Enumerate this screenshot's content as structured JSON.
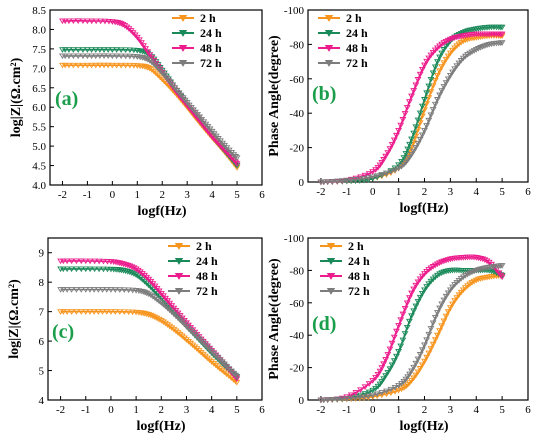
{
  "colors": {
    "2 h": "#f7941d",
    "24 h": "#1b8a5a",
    "48 h": "#ec1c8c",
    "72 h": "#7d7d7d"
  },
  "chart_data": [
    {
      "panel_label": "(a)",
      "type": "line",
      "xlabel": "logf(Hz)",
      "ylabel": "log|Z|(Ω.cm²)",
      "xlim": [
        -2.5,
        6
      ],
      "ylim": [
        4.0,
        8.5
      ],
      "xticks": [
        -2,
        -1,
        0,
        1,
        2,
        3,
        4,
        5,
        6
      ],
      "yticks": [
        4.0,
        4.5,
        5.0,
        5.5,
        6.0,
        6.5,
        7.0,
        7.5,
        8.0,
        8.5
      ],
      "ytick_labels": [
        "4.0",
        "4.5",
        "5.0",
        "5.5",
        "6.0",
        "6.5",
        "7.0",
        "7.5",
        "8.0",
        "8.5"
      ],
      "legend": "top-right",
      "series": [
        {
          "name": "2 h",
          "marker": "triangle-down",
          "x": [
            -2,
            -1,
            0,
            1,
            1.5,
            2,
            2.5,
            3,
            3.5,
            4,
            4.5,
            5
          ],
          "y": [
            7.08,
            7.08,
            7.08,
            7.07,
            7.0,
            6.72,
            6.38,
            6.0,
            5.6,
            5.22,
            4.85,
            4.45
          ]
        },
        {
          "name": "24 h",
          "marker": "triangle-down",
          "x": [
            -2,
            -1,
            0,
            1,
            1.5,
            2,
            2.5,
            3,
            3.5,
            4,
            4.5,
            5
          ],
          "y": [
            7.48,
            7.48,
            7.48,
            7.46,
            7.35,
            6.95,
            6.5,
            6.06,
            5.65,
            5.25,
            4.88,
            4.5
          ]
        },
        {
          "name": "48 h",
          "marker": "triangle-down",
          "x": [
            -2,
            -1,
            0,
            0.5,
            1,
            1.5,
            2,
            2.5,
            3,
            3.5,
            4,
            4.5,
            5
          ],
          "y": [
            8.22,
            8.22,
            8.2,
            8.1,
            7.8,
            7.35,
            6.9,
            6.45,
            6.05,
            5.65,
            5.25,
            4.9,
            4.55
          ]
        },
        {
          "name": "72 h",
          "marker": "triangle-down",
          "x": [
            -2,
            -1,
            0,
            1,
            1.5,
            2,
            2.5,
            3,
            3.5,
            4,
            4.5,
            5
          ],
          "y": [
            7.32,
            7.32,
            7.32,
            7.3,
            7.2,
            6.88,
            6.5,
            6.12,
            5.75,
            5.38,
            5.02,
            4.7
          ]
        }
      ]
    },
    {
      "panel_label": "(b)",
      "type": "line",
      "xlabel": "logf(Hz)",
      "ylabel": "Phase Angle(degree)",
      "xlim": [
        -2.5,
        6
      ],
      "ylim": [
        0,
        -100
      ],
      "ylim_note": "inverted axis, 0 at bottom, -100 at top",
      "xticks": [
        -2,
        -1,
        0,
        1,
        2,
        3,
        4,
        5,
        6
      ],
      "yticks": [
        0,
        -20,
        -40,
        -60,
        -80,
        -100
      ],
      "ytick_labels": [
        "0",
        "-20",
        "-40",
        "-60",
        "-80",
        "-100"
      ],
      "legend": "top-left",
      "series": [
        {
          "name": "2 h",
          "marker": "triangle-down",
          "x": [
            -2,
            -1,
            0,
            1,
            1.5,
            2,
            2.5,
            3,
            3.5,
            4,
            4.5,
            5
          ],
          "y": [
            0,
            -0.5,
            -2,
            -8,
            -20,
            -42,
            -62,
            -75,
            -82,
            -84,
            -85,
            -85
          ]
        },
        {
          "name": "24 h",
          "marker": "triangle-down",
          "x": [
            -2,
            -1,
            0,
            1,
            1.5,
            2,
            2.5,
            3,
            3.5,
            4,
            4.5,
            5
          ],
          "y": [
            0,
            -0.5,
            -2,
            -10,
            -25,
            -48,
            -70,
            -82,
            -87,
            -89,
            -90,
            -90
          ]
        },
        {
          "name": "48 h",
          "marker": "triangle-down",
          "x": [
            -2,
            -1,
            0,
            0.5,
            1,
            1.5,
            2,
            2.5,
            3,
            3.5,
            4,
            4.5,
            5
          ],
          "y": [
            0,
            -1,
            -6,
            -15,
            -30,
            -50,
            -68,
            -78,
            -83,
            -85,
            -86,
            -86,
            -86
          ]
        },
        {
          "name": "72 h",
          "marker": "triangle-down",
          "x": [
            -2,
            -1,
            0,
            1,
            1.5,
            2,
            2.5,
            3,
            3.5,
            4,
            4.5,
            5
          ],
          "y": [
            0,
            -1,
            -3,
            -8,
            -16,
            -30,
            -48,
            -62,
            -72,
            -77,
            -80,
            -81
          ]
        }
      ]
    },
    {
      "panel_label": "(c)",
      "type": "line",
      "xlabel": "logf(Hz)",
      "ylabel": "log|Z|(Ω.cm²)",
      "xlim": [
        -2.5,
        6
      ],
      "ylim": [
        4,
        9.5
      ],
      "xticks": [
        -2,
        -1,
        0,
        1,
        2,
        3,
        4,
        5,
        6
      ],
      "yticks": [
        4,
        5,
        6,
        7,
        8,
        9
      ],
      "ytick_labels": [
        "4",
        "5",
        "6",
        "7",
        "8",
        "9"
      ],
      "legend": "top-right",
      "series": [
        {
          "name": "2 h",
          "marker": "triangle-down",
          "x": [
            -2,
            -1,
            0,
            1,
            1.5,
            2,
            2.5,
            3,
            3.5,
            4,
            4.5,
            5
          ],
          "y": [
            7.0,
            7.0,
            7.0,
            6.98,
            6.9,
            6.7,
            6.4,
            6.05,
            5.68,
            5.3,
            4.95,
            4.6
          ]
        },
        {
          "name": "24 h",
          "marker": "triangle-down",
          "x": [
            -2,
            -1,
            0,
            0.5,
            1,
            1.5,
            2,
            2.5,
            3,
            3.5,
            4,
            4.5,
            5
          ],
          "y": [
            8.45,
            8.45,
            8.44,
            8.4,
            8.25,
            7.9,
            7.45,
            6.98,
            6.5,
            6.05,
            5.6,
            5.18,
            4.78
          ]
        },
        {
          "name": "48 h",
          "marker": "triangle-down",
          "x": [
            -2,
            -1,
            0,
            0.5,
            1,
            1.5,
            2,
            2.5,
            3,
            3.5,
            4,
            4.5,
            5
          ],
          "y": [
            8.72,
            8.72,
            8.7,
            8.62,
            8.45,
            8.1,
            7.62,
            7.12,
            6.62,
            6.15,
            5.68,
            5.22,
            4.72
          ]
        },
        {
          "name": "72 h",
          "marker": "triangle-down",
          "x": [
            -2,
            -1,
            0,
            1,
            1.5,
            2,
            2.5,
            3,
            3.5,
            4,
            4.5,
            5
          ],
          "y": [
            7.75,
            7.75,
            7.75,
            7.72,
            7.6,
            7.3,
            6.92,
            6.5,
            6.08,
            5.65,
            5.22,
            4.8
          ]
        }
      ]
    },
    {
      "panel_label": "(d)",
      "type": "line",
      "xlabel": "logf(Hz)",
      "ylabel": "Phase Angle(degree)",
      "xlim": [
        -2.5,
        6
      ],
      "ylim": [
        0,
        -100
      ],
      "ylim_note": "inverted axis, 0 at bottom, -100 at top",
      "xticks": [
        -2,
        -1,
        0,
        1,
        2,
        3,
        4,
        5,
        6
      ],
      "yticks": [
        0,
        -20,
        -40,
        -60,
        -80,
        -100
      ],
      "ytick_labels": [
        "0",
        "-20",
        "-40",
        "-60",
        "-80",
        "-100"
      ],
      "legend": "top-left",
      "series": [
        {
          "name": "2 h",
          "marker": "triangle-down",
          "x": [
            -2,
            -1,
            0,
            1,
            1.5,
            2,
            2.5,
            3,
            3.5,
            4,
            4.5,
            5
          ],
          "y": [
            0,
            -0.5,
            -2,
            -6,
            -12,
            -24,
            -40,
            -57,
            -68,
            -74,
            -76,
            -77
          ]
        },
        {
          "name": "24 h",
          "marker": "triangle-down",
          "x": [
            -2,
            -1,
            0,
            0.5,
            1,
            1.5,
            2,
            2.5,
            3,
            3.5,
            4,
            4.5,
            5
          ],
          "y": [
            0,
            -1,
            -6,
            -15,
            -30,
            -52,
            -68,
            -77,
            -80,
            -80,
            -80,
            -80,
            -77
          ]
        },
        {
          "name": "48 h",
          "marker": "triangle-down",
          "x": [
            -2,
            -1,
            0,
            0.5,
            1,
            1.5,
            2,
            2.5,
            3,
            3.5,
            4,
            4.5,
            5
          ],
          "y": [
            0,
            -2,
            -12,
            -25,
            -46,
            -66,
            -78,
            -84,
            -87,
            -88,
            -88,
            -85,
            -76
          ]
        },
        {
          "name": "72 h",
          "marker": "triangle-down",
          "x": [
            -2,
            -1,
            0,
            1,
            1.5,
            2,
            2.5,
            3,
            3.5,
            4,
            4.5,
            5
          ],
          "y": [
            0,
            -1,
            -3,
            -9,
            -18,
            -34,
            -54,
            -68,
            -76,
            -80,
            -82,
            -83
          ]
        }
      ]
    }
  ]
}
